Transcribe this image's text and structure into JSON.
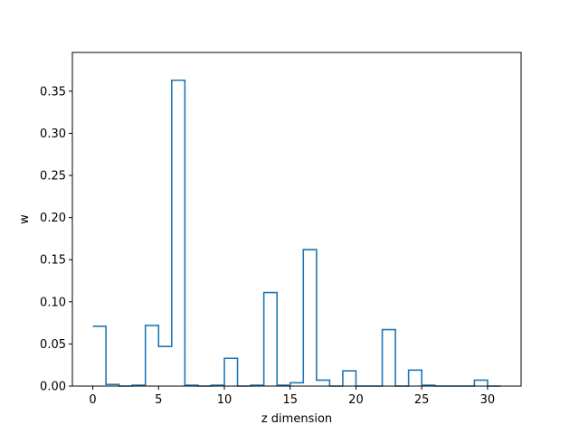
{
  "chart_data": {
    "type": "step",
    "title": "",
    "xlabel": "z dimension",
    "ylabel": "w",
    "xlim": [
      -1.55,
      32.55
    ],
    "ylim": [
      0,
      0.396
    ],
    "xticks": [
      0,
      5,
      10,
      15,
      20,
      25,
      30
    ],
    "yticks": [
      0.0,
      0.05,
      0.1,
      0.15,
      0.2,
      0.25,
      0.3,
      0.35
    ],
    "ytick_labels": [
      "0.00",
      "0.05",
      "0.10",
      "0.15",
      "0.20",
      "0.25",
      "0.30",
      "0.35"
    ],
    "grid": false,
    "legend": "none",
    "line_color": "#1f77b4",
    "x": [
      0,
      1,
      2,
      3,
      4,
      5,
      6,
      7,
      8,
      9,
      10,
      11,
      12,
      13,
      14,
      15,
      16,
      17,
      18,
      19,
      20,
      21,
      22,
      23,
      24,
      25,
      26,
      27,
      28,
      29,
      30,
      31
    ],
    "values": [
      0.071,
      0.002,
      0.0,
      0.001,
      0.072,
      0.047,
      0.363,
      0.001,
      0.0,
      0.001,
      0.033,
      0.0,
      0.001,
      0.111,
      0.001,
      0.004,
      0.162,
      0.007,
      0.0,
      0.018,
      0.0,
      0.0,
      0.067,
      0.0,
      0.019,
      0.001,
      0.0,
      0.0,
      0.0,
      0.007,
      0.0,
      0.0
    ]
  }
}
